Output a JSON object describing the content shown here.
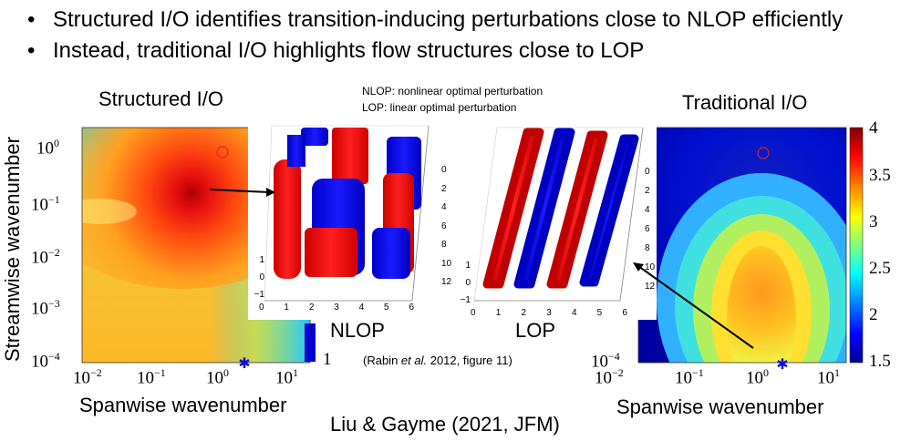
{
  "slide": {
    "bullets": [
      "Structured I/O identifies transition-inducing perturbations close to NLOP efficiently",
      "Instead, traditional I/O highlights flow structures close to LOP"
    ],
    "left_title": "Structured I/O",
    "right_title": "Traditional I/O",
    "legend_lines": [
      "NLOP: nonlinear optimal perturbation",
      "LOP: linear optimal perturbation"
    ],
    "nlop_label": "NLOP",
    "lop_label": "LOP",
    "citation_prefix": "(Rabin ",
    "citation_italic": "et al.",
    "citation_suffix": " 2012, figure 11)",
    "footer": "Liu & Gayme (2021, JFM)",
    "ylabel": "Streamwise wavenumber",
    "xlabel": "Spanwise wavenumber",
    "tick_base": "10",
    "left_y_ticks": [
      "0",
      "−1",
      "−2",
      "−3",
      "−4"
    ],
    "left_x_ticks": [
      "−2",
      "−1",
      "0",
      "1"
    ],
    "right_y_ticks": [
      "−4"
    ],
    "right_x_ticks": [
      "−2",
      "−1",
      "0",
      "1"
    ],
    "colorbar_ticks": [
      "4",
      "3.5",
      "3",
      "2.5",
      "2",
      "1.5"
    ],
    "left_colorbar_tick": "1",
    "nlop_y_ticks": [
      "0",
      "2",
      "4",
      "6",
      "8",
      "10",
      "12"
    ],
    "nlop_x_ticks": [
      "0",
      "1",
      "2",
      "3",
      "4",
      "5",
      "6"
    ],
    "nlop_z_ticks": [
      "1",
      "0",
      "−1"
    ],
    "lop_y_ticks": [
      "0",
      "2",
      "4",
      "6",
      "8",
      "10",
      "12"
    ],
    "lop_x_ticks": [
      "0",
      "1",
      "2",
      "3",
      "4",
      "5",
      "6"
    ],
    "lop_z_ticks": [
      "1",
      "0",
      "−1"
    ]
  },
  "colors": {
    "red": "#ff1a1a",
    "blue": "#1010f0",
    "marker_circle": "#e02020",
    "marker_star": "#1010d0"
  }
}
